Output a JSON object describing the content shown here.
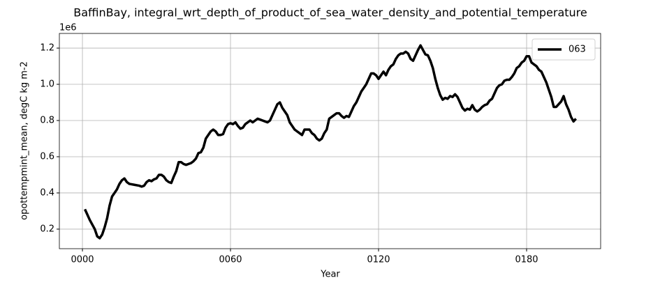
{
  "chart_data": {
    "type": "line",
    "title": "BaffinBay, integral_wrt_depth_of_product_of_sea_water_density_and_potential_temperature",
    "xlabel": "Year",
    "ylabel": "opottempmint_mean, degC kg m-2",
    "y_offset_label": "1e6",
    "x": [
      1,
      3,
      5,
      6,
      7,
      8,
      9,
      10,
      11,
      12,
      13,
      14,
      15,
      16,
      17,
      18,
      19,
      21,
      23,
      24,
      25,
      26,
      27,
      28,
      29,
      30,
      31,
      32,
      33,
      34,
      35,
      36,
      37,
      38,
      39,
      40,
      41,
      42,
      43,
      44,
      45,
      46,
      47,
      48,
      49,
      50,
      51,
      52,
      53,
      54,
      55,
      56,
      57,
      58,
      59,
      60,
      61,
      62,
      63,
      64,
      65,
      66,
      67,
      68,
      69,
      70,
      71,
      72,
      73,
      74,
      75,
      76,
      77,
      78,
      79,
      80,
      81,
      82,
      83,
      84,
      85,
      86,
      87,
      88,
      89,
      90,
      91,
      92,
      93,
      94,
      95,
      96,
      97,
      98,
      99,
      100,
      101,
      102,
      103,
      104,
      105,
      106,
      107,
      108,
      109,
      110,
      111,
      112,
      113,
      114,
      115,
      116,
      117,
      118,
      119,
      120,
      121,
      122,
      123,
      124,
      125,
      126,
      127,
      128,
      129,
      130,
      131,
      132,
      133,
      134,
      135,
      136,
      137,
      138,
      139,
      140,
      141,
      142,
      143,
      144,
      145,
      146,
      147,
      148,
      149,
      150,
      151,
      152,
      153,
      154,
      155,
      156,
      157,
      158,
      159,
      160,
      161,
      162,
      163,
      164,
      165,
      166,
      167,
      168,
      169,
      170,
      171,
      172,
      173,
      174,
      175,
      176,
      177,
      178,
      179,
      180,
      181,
      182,
      183,
      184,
      185,
      186,
      187,
      188,
      189,
      190,
      191,
      192,
      193,
      194,
      195,
      196,
      197,
      198,
      199,
      200
    ],
    "series": [
      {
        "name": "063",
        "color": "#000000",
        "values": [
          0.31,
          0.25,
          0.2,
          0.16,
          0.15,
          0.17,
          0.21,
          0.26,
          0.33,
          0.38,
          0.4,
          0.42,
          0.45,
          0.47,
          0.48,
          0.46,
          0.45,
          0.445,
          0.44,
          0.435,
          0.44,
          0.46,
          0.47,
          0.465,
          0.475,
          0.48,
          0.5,
          0.5,
          0.49,
          0.47,
          0.46,
          0.455,
          0.49,
          0.52,
          0.57,
          0.57,
          0.56,
          0.555,
          0.56,
          0.565,
          0.575,
          0.59,
          0.62,
          0.625,
          0.65,
          0.7,
          0.72,
          0.74,
          0.75,
          0.74,
          0.72,
          0.72,
          0.725,
          0.76,
          0.78,
          0.785,
          0.78,
          0.79,
          0.77,
          0.755,
          0.76,
          0.78,
          0.79,
          0.8,
          0.79,
          0.8,
          0.81,
          0.805,
          0.8,
          0.795,
          0.79,
          0.8,
          0.83,
          0.86,
          0.89,
          0.9,
          0.87,
          0.85,
          0.83,
          0.79,
          0.77,
          0.75,
          0.74,
          0.73,
          0.72,
          0.75,
          0.75,
          0.75,
          0.73,
          0.72,
          0.7,
          0.69,
          0.7,
          0.73,
          0.75,
          0.81,
          0.82,
          0.83,
          0.84,
          0.84,
          0.825,
          0.815,
          0.825,
          0.82,
          0.85,
          0.88,
          0.9,
          0.93,
          0.96,
          0.98,
          1.0,
          1.03,
          1.06,
          1.06,
          1.05,
          1.03,
          1.05,
          1.07,
          1.05,
          1.08,
          1.1,
          1.11,
          1.14,
          1.16,
          1.17,
          1.17,
          1.18,
          1.17,
          1.14,
          1.13,
          1.16,
          1.19,
          1.215,
          1.19,
          1.165,
          1.16,
          1.13,
          1.09,
          1.03,
          0.98,
          0.94,
          0.915,
          0.925,
          0.92,
          0.935,
          0.93,
          0.945,
          0.93,
          0.9,
          0.87,
          0.855,
          0.865,
          0.86,
          0.885,
          0.86,
          0.85,
          0.86,
          0.875,
          0.885,
          0.89,
          0.91,
          0.92,
          0.95,
          0.98,
          0.995,
          1.0,
          1.02,
          1.025,
          1.025,
          1.04,
          1.06,
          1.09,
          1.1,
          1.12,
          1.13,
          1.155,
          1.155,
          1.12,
          1.11,
          1.1,
          1.08,
          1.07,
          1.04,
          1.01,
          0.97,
          0.93,
          0.875,
          0.875,
          0.89,
          0.905,
          0.935,
          0.89,
          0.86,
          0.82,
          0.795,
          0.81
        ]
      }
    ],
    "xlim": [
      -9.35,
      210
    ],
    "ylim": [
      0.092,
      1.281
    ],
    "xticks": [
      {
        "value": 0,
        "label": "0000"
      },
      {
        "value": 60,
        "label": "0060"
      },
      {
        "value": 120,
        "label": "0120"
      },
      {
        "value": 180,
        "label": "0180"
      }
    ],
    "yticks": [
      0.2,
      0.4,
      0.6,
      0.8,
      {
        "value": 1.0,
        "label": "1.0"
      },
      1.2
    ],
    "grid": true,
    "legend": "upper right"
  }
}
